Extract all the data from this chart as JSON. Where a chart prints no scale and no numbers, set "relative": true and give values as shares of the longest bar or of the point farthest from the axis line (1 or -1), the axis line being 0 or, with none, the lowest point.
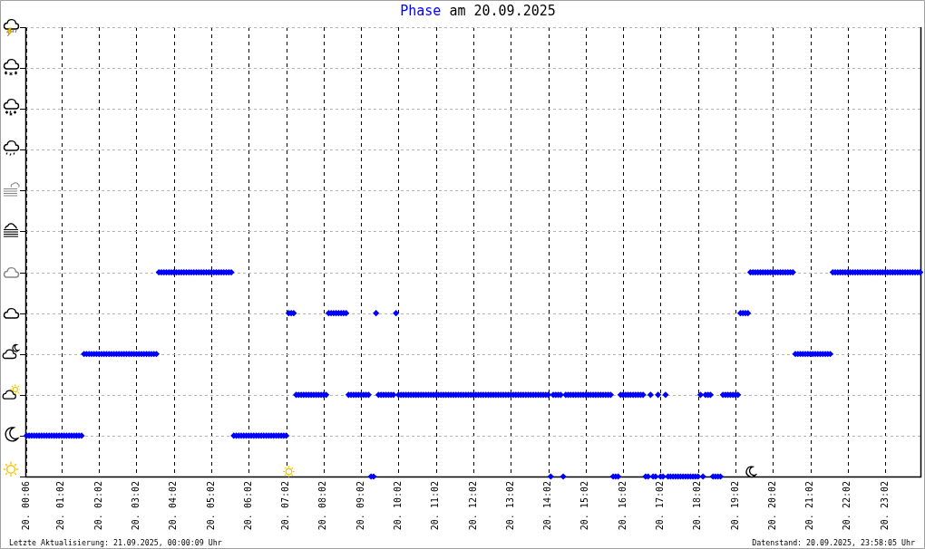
{
  "chart_data": {
    "type": "scatter",
    "title": "Phase am 20.09.2025",
    "annotations": [
      "Letzte Aktualisierung: 21.09.2025, 00:00:09 Uhr",
      "Datenstand: 20.09.2025, 23:58:05 Uhr"
    ],
    "categories": [
      "20. 00:06",
      null,
      null,
      null,
      null,
      null,
      null,
      null,
      null,
      null,
      null,
      null,
      null,
      null,
      "20. 01:02",
      null,
      null,
      null,
      null,
      null,
      null,
      null,
      null,
      null,
      null,
      null,
      null,
      null,
      null,
      "20. 02:02",
      null,
      null,
      null,
      null,
      null,
      null,
      null,
      null,
      null,
      null,
      null,
      null,
      null,
      null,
      "20. 03:02",
      null,
      null,
      null,
      null,
      null,
      null,
      null,
      null,
      null,
      null,
      null,
      null,
      null,
      null,
      "20. 04:02",
      null,
      null,
      null,
      null,
      null,
      null,
      null,
      null,
      null,
      null,
      null,
      null,
      null,
      null,
      "20. 05:02",
      null,
      null,
      null,
      null,
      null,
      null,
      null,
      null,
      null,
      null,
      null,
      null,
      null,
      null,
      "20. 06:02",
      null,
      null,
      null,
      null,
      null,
      null,
      null,
      null,
      null,
      null,
      null,
      null,
      null,
      null,
      "20. 07:02",
      null,
      null,
      null,
      null,
      null,
      null,
      null,
      null,
      null,
      null,
      null,
      null,
      null,
      null,
      "20. 08:02",
      null,
      null,
      null,
      null,
      null,
      null,
      null,
      null,
      null,
      null,
      null,
      null,
      null,
      null,
      "20. 09:02",
      null,
      null,
      null,
      null,
      null,
      null,
      null,
      null,
      null,
      null,
      null,
      null,
      null,
      null,
      "20. 10:02",
      null,
      null,
      null,
      null,
      null,
      null,
      null,
      null,
      null,
      null,
      null,
      null,
      null,
      null,
      "20. 11:02",
      null,
      null,
      null,
      null,
      null,
      null,
      null,
      null,
      null,
      null,
      null,
      null,
      null,
      null,
      "20. 12:02",
      null,
      null,
      null,
      null,
      null,
      null,
      null,
      null,
      null,
      null,
      null,
      null,
      null,
      null,
      "20. 13:02",
      null,
      null,
      null,
      null,
      null,
      null,
      null,
      null,
      null,
      null,
      null,
      null,
      null,
      null,
      "20. 14:02",
      null,
      null,
      null,
      null,
      null,
      null,
      null,
      null,
      null,
      null,
      null,
      null,
      null,
      null,
      "20. 15:02",
      null,
      null,
      null,
      null,
      null,
      null,
      null,
      null,
      null,
      null,
      null,
      null,
      null,
      null,
      "20. 16:02",
      null,
      null,
      null,
      null,
      null,
      null,
      null,
      null,
      null,
      null,
      null,
      null,
      null,
      null,
      "20. 17:02",
      null,
      null,
      null,
      null,
      null,
      null,
      null,
      null,
      null,
      null,
      null,
      null,
      null,
      null,
      "20. 18:02",
      null,
      null,
      null,
      null,
      null,
      null,
      null,
      null,
      null,
      null,
      null,
      null,
      null,
      null,
      "20. 19:02",
      null,
      null,
      null,
      null,
      null,
      null,
      null,
      null,
      null,
      null,
      null,
      null,
      null,
      null,
      "20. 20:02",
      null,
      null,
      null,
      null,
      null,
      null,
      null,
      null,
      null,
      null,
      null,
      null,
      null,
      null,
      "20. 21:02",
      null,
      null,
      null,
      null,
      null,
      null,
      null,
      null,
      null,
      null,
      null,
      null,
      null,
      null,
      "20. 22:02",
      null,
      null,
      null,
      null,
      null,
      null,
      null,
      null,
      null,
      null,
      null,
      null,
      null,
      null,
      "20. 23:02",
      null,
      null,
      null,
      null,
      null,
      null,
      null,
      null,
      null,
      null,
      null,
      null,
      null,
      null
    ],
    "values": [
      0.2,
      0.2,
      0.2,
      0.2,
      0.2,
      0.2,
      0.2,
      0.2,
      0.2,
      0.2,
      0.2,
      0.2,
      0.2,
      0.2,
      0.2,
      0.2,
      0.2,
      0.2,
      0.2,
      0.2,
      0.2,
      0.2,
      0.2,
      0.6,
      0.6,
      0.6,
      0.6,
      0.6,
      0.6,
      0.6,
      0.6,
      0.6,
      0.6,
      0.6,
      0.6,
      0.6,
      0.6,
      0.6,
      0.6,
      0.6,
      0.6,
      0.6,
      0.6,
      0.6,
      0.6,
      0.6,
      0.6,
      0.6,
      0.6,
      0.6,
      0.6,
      0.6,
      0.6,
      1,
      1,
      1,
      1,
      1,
      1,
      1,
      1,
      1,
      1,
      1,
      1,
      1,
      1,
      1,
      1,
      1,
      1,
      1,
      1,
      1,
      1,
      1,
      1,
      1,
      1,
      1,
      1,
      1,
      1,
      0.2,
      0.2,
      0.2,
      0.2,
      0.2,
      0.2,
      0.2,
      0.2,
      0.2,
      0.2,
      0.2,
      0.2,
      0.2,
      0.2,
      0.2,
      0.2,
      0.2,
      0.2,
      0.2,
      0.2,
      0.2,
      0.2,
      0.8,
      0.8,
      0.8,
      0.4,
      0.4,
      0.4,
      0.4,
      0.4,
      0.4,
      0.4,
      0.4,
      0.4,
      0.4,
      0.4,
      0.4,
      0.4,
      0.8,
      0.8,
      0.8,
      0.8,
      0.8,
      0.8,
      0.8,
      0.8,
      0.4,
      0.4,
      0.4,
      0.4,
      0.4,
      0.4,
      0.4,
      0.4,
      0.4,
      0,
      0,
      0.8,
      0.4,
      0.4,
      0.4,
      0.4,
      0.4,
      0.4,
      0.4,
      0.8,
      0.4,
      0.4,
      0.4,
      0.4,
      0.4,
      0.4,
      0.4,
      0.4,
      0.4,
      0.4,
      0.4,
      0.4,
      0.4,
      0.4,
      0.4,
      0.4,
      0.4,
      0.4,
      0.4,
      0.4,
      0.4,
      0.4,
      0.4,
      0.4,
      0.4,
      0.4,
      0.4,
      0.4,
      0.4,
      0.4,
      0.4,
      0.4,
      0.4,
      0.4,
      0.4,
      0.4,
      0.4,
      0.4,
      0.4,
      0.4,
      0.4,
      0.4,
      0.4,
      0.4,
      0.4,
      0.4,
      0.4,
      0.4,
      0.4,
      0.4,
      0.4,
      0.4,
      0.4,
      0.4,
      0.4,
      0.4,
      0.4,
      0.4,
      0.4,
      0.4,
      0.4,
      0,
      0.4,
      0.4,
      0.4,
      0.4,
      0,
      0.4,
      0.4,
      0.4,
      0.4,
      0.4,
      0.4,
      0.4,
      0.4,
      0.4,
      0.4,
      0.4,
      0.4,
      0.4,
      0.4,
      0.4,
      0.4,
      0.4,
      0.4,
      0.4,
      0,
      0,
      0,
      0.4,
      0.4,
      0.4,
      0.4,
      0.4,
      0.4,
      0.4,
      0.4,
      0.4,
      0.4,
      0,
      0,
      0.4,
      0,
      0,
      0.4,
      0,
      0,
      0.4,
      0,
      0,
      0,
      0,
      0,
      0,
      0,
      0,
      0,
      0,
      0,
      0,
      0,
      0.4,
      0,
      0.4,
      0.4,
      0.4,
      0,
      0,
      0,
      0,
      0.4,
      0.4,
      0.4,
      0.4,
      0.4,
      0.4,
      0.4,
      0.8,
      0.8,
      0.8,
      0.8,
      1,
      1,
      1,
      1,
      1,
      1,
      1,
      1,
      1,
      1,
      1,
      1,
      1,
      1,
      1,
      1,
      1,
      1,
      0.6,
      0.6,
      0.6,
      0.6,
      0.6,
      0.6,
      0.6,
      0.6,
      0.6,
      0.6,
      0.6,
      0.6,
      0.6,
      0.6,
      0.6,
      1,
      1,
      1,
      1,
      1,
      1,
      1,
      1,
      1,
      1,
      1,
      1,
      1,
      1,
      1,
      1,
      1,
      1,
      1,
      1,
      1,
      1,
      1,
      1,
      1,
      1,
      1,
      1,
      1,
      1,
      1,
      1,
      1,
      1,
      1,
      1
    ],
    "relative": true,
    "color": "#0000ff",
    "marker": "diamond",
    "grid": true,
    "tick_labels": "x",
    "legend": false
  }
}
